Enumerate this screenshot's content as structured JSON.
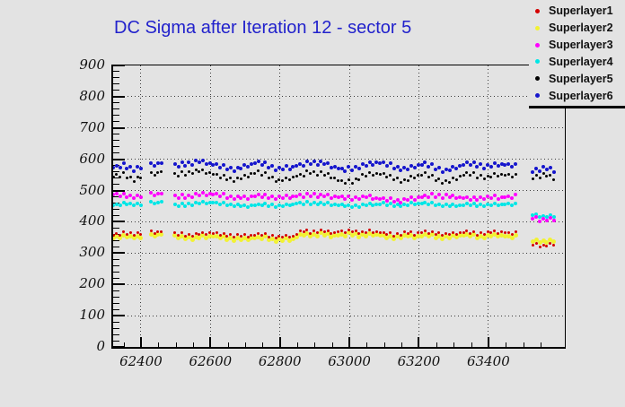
{
  "colors": {
    "background": "#e3e3e3",
    "title": "#2222cc",
    "frame": "#000000",
    "grid": "#3c3c3c"
  },
  "chart_data": {
    "type": "scatter",
    "title": "DC Sigma after Iteration 12 - sector 5",
    "xlabel": "",
    "ylabel": "",
    "x_range": [
      62320,
      63620
    ],
    "y_range": [
      0,
      900
    ],
    "grid": "dotted at major ticks, both axes",
    "legend_position": "top-right",
    "x_major_ticks": [
      {
        "value": 62400,
        "label": "62400"
      },
      {
        "value": 62600,
        "label": "62600"
      },
      {
        "value": 62800,
        "label": "62800"
      },
      {
        "value": 63000,
        "label": "63000"
      },
      {
        "value": 63200,
        "label": "63200"
      },
      {
        "value": 63400,
        "label": "63400"
      }
    ],
    "x_minor_step": 50,
    "y_major_ticks": [
      {
        "value": 0,
        "label": "0"
      },
      {
        "value": 100,
        "label": "100"
      },
      {
        "value": 200,
        "label": "200"
      },
      {
        "value": 300,
        "label": "300"
      },
      {
        "value": 400,
        "label": "400"
      },
      {
        "value": 500,
        "label": "500"
      },
      {
        "value": 600,
        "label": "600"
      },
      {
        "value": 700,
        "label": "700"
      },
      {
        "value": 800,
        "label": "800"
      },
      {
        "value": 900,
        "label": "900"
      }
    ],
    "y_minor_step": 20,
    "segments": [
      [
        62320,
        62408
      ],
      [
        62429,
        62467
      ],
      [
        62498,
        63486
      ],
      [
        63528,
        63595
      ]
    ],
    "marker_step": 10,
    "draw_order": [
      1,
      3,
      2,
      4,
      5,
      0
    ],
    "series": [
      {
        "name": "Superlayer1",
        "color": "#d40000",
        "size": 3,
        "jitter": 5,
        "anchors": [
          [
            62320,
            357
          ],
          [
            62360,
            364
          ],
          [
            62408,
            359
          ],
          [
            62429,
            366
          ],
          [
            62467,
            368
          ],
          [
            62500,
            361
          ],
          [
            62550,
            358
          ],
          [
            62600,
            363
          ],
          [
            62650,
            357
          ],
          [
            62700,
            354
          ],
          [
            62750,
            359
          ],
          [
            62800,
            351
          ],
          [
            62840,
            354
          ],
          [
            62862,
            371
          ],
          [
            62890,
            367
          ],
          [
            62920,
            372
          ],
          [
            62950,
            364
          ],
          [
            62980,
            368
          ],
          [
            63010,
            372
          ],
          [
            63040,
            365
          ],
          [
            63070,
            370
          ],
          [
            63100,
            362
          ],
          [
            63130,
            359
          ],
          [
            63160,
            365
          ],
          [
            63190,
            361
          ],
          [
            63220,
            367
          ],
          [
            63250,
            363
          ],
          [
            63280,
            359
          ],
          [
            63310,
            364
          ],
          [
            63340,
            367
          ],
          [
            63370,
            361
          ],
          [
            63400,
            365
          ],
          [
            63430,
            367
          ],
          [
            63460,
            361
          ],
          [
            63486,
            363
          ],
          [
            63528,
            330
          ],
          [
            63560,
            322
          ],
          [
            63595,
            331
          ]
        ]
      },
      {
        "name": "Superlayer2",
        "color": "#f2f233",
        "size": 5,
        "jitter": 5,
        "anchors": [
          [
            62320,
            347
          ],
          [
            62360,
            354
          ],
          [
            62408,
            349
          ],
          [
            62429,
            356
          ],
          [
            62467,
            358
          ],
          [
            62500,
            351
          ],
          [
            62550,
            348
          ],
          [
            62600,
            353
          ],
          [
            62650,
            347
          ],
          [
            62700,
            344
          ],
          [
            62750,
            349
          ],
          [
            62800,
            341
          ],
          [
            62840,
            344
          ],
          [
            62862,
            360
          ],
          [
            62890,
            357
          ],
          [
            62920,
            361
          ],
          [
            62950,
            354
          ],
          [
            62980,
            357
          ],
          [
            63010,
            361
          ],
          [
            63040,
            355
          ],
          [
            63070,
            359
          ],
          [
            63100,
            352
          ],
          [
            63130,
            349
          ],
          [
            63160,
            355
          ],
          [
            63190,
            351
          ],
          [
            63220,
            357
          ],
          [
            63250,
            353
          ],
          [
            63280,
            349
          ],
          [
            63310,
            354
          ],
          [
            63340,
            357
          ],
          [
            63370,
            351
          ],
          [
            63400,
            355
          ],
          [
            63430,
            357
          ],
          [
            63460,
            351
          ],
          [
            63486,
            353
          ],
          [
            63528,
            342
          ],
          [
            63560,
            335
          ],
          [
            63595,
            341
          ]
        ]
      },
      {
        "name": "Superlayer3",
        "color": "#ff00ff",
        "size": 4,
        "jitter": 6,
        "anchors": [
          [
            62320,
            487
          ],
          [
            62360,
            483
          ],
          [
            62408,
            479
          ],
          [
            62429,
            486
          ],
          [
            62467,
            490
          ],
          [
            62500,
            478
          ],
          [
            62550,
            484
          ],
          [
            62600,
            489
          ],
          [
            62650,
            481
          ],
          [
            62700,
            476
          ],
          [
            62750,
            483
          ],
          [
            62800,
            477
          ],
          [
            62850,
            481
          ],
          [
            62900,
            487
          ],
          [
            62950,
            480
          ],
          [
            63000,
            476
          ],
          [
            63050,
            479
          ],
          [
            63100,
            470
          ],
          [
            63150,
            467
          ],
          [
            63200,
            477
          ],
          [
            63250,
            485
          ],
          [
            63300,
            479
          ],
          [
            63350,
            473
          ],
          [
            63400,
            479
          ],
          [
            63450,
            477
          ],
          [
            63486,
            481
          ],
          [
            63528,
            415
          ],
          [
            63560,
            404
          ],
          [
            63595,
            409
          ]
        ]
      },
      {
        "name": "Superlayer4",
        "color": "#00e6e6",
        "size": 4,
        "jitter": 4,
        "anchors": [
          [
            62320,
            452
          ],
          [
            62360,
            458
          ],
          [
            62408,
            454
          ],
          [
            62429,
            460
          ],
          [
            62467,
            463
          ],
          [
            62500,
            452
          ],
          [
            62550,
            457
          ],
          [
            62600,
            461
          ],
          [
            62650,
            455
          ],
          [
            62700,
            449
          ],
          [
            62750,
            455
          ],
          [
            62800,
            451
          ],
          [
            62850,
            457
          ],
          [
            62900,
            461
          ],
          [
            62950,
            455
          ],
          [
            63000,
            450
          ],
          [
            63050,
            454
          ],
          [
            63100,
            457
          ],
          [
            63150,
            453
          ],
          [
            63200,
            459
          ],
          [
            63250,
            456
          ],
          [
            63300,
            451
          ],
          [
            63350,
            455
          ],
          [
            63400,
            452
          ],
          [
            63450,
            456
          ],
          [
            63486,
            455
          ],
          [
            63528,
            424
          ],
          [
            63560,
            416
          ],
          [
            63595,
            419
          ]
        ]
      },
      {
        "name": "Superlayer5",
        "color": "#000000",
        "size": 3,
        "jitter": 7,
        "anchors": [
          [
            62320,
            542
          ],
          [
            62350,
            551
          ],
          [
            62380,
            536
          ],
          [
            62408,
            545
          ],
          [
            62429,
            550
          ],
          [
            62467,
            560
          ],
          [
            62500,
            548
          ],
          [
            62530,
            556
          ],
          [
            62560,
            563
          ],
          [
            62590,
            557
          ],
          [
            62620,
            546
          ],
          [
            62650,
            539
          ],
          [
            62680,
            535
          ],
          [
            62710,
            549
          ],
          [
            62740,
            557
          ],
          [
            62770,
            545
          ],
          [
            62800,
            530
          ],
          [
            62830,
            538
          ],
          [
            62860,
            548
          ],
          [
            62890,
            560
          ],
          [
            62920,
            554
          ],
          [
            62950,
            543
          ],
          [
            62980,
            524
          ],
          [
            63010,
            530
          ],
          [
            63040,
            547
          ],
          [
            63070,
            554
          ],
          [
            63100,
            549
          ],
          [
            63130,
            539
          ],
          [
            63160,
            530
          ],
          [
            63190,
            544
          ],
          [
            63220,
            551
          ],
          [
            63250,
            538
          ],
          [
            63280,
            525
          ],
          [
            63310,
            540
          ],
          [
            63340,
            553
          ],
          [
            63370,
            547
          ],
          [
            63400,
            541
          ],
          [
            63430,
            551
          ],
          [
            63460,
            547
          ],
          [
            63486,
            545
          ],
          [
            63528,
            543
          ],
          [
            63560,
            551
          ],
          [
            63595,
            536
          ]
        ]
      },
      {
        "name": "Superlayer6",
        "color": "#1515cc",
        "size": 4,
        "jitter": 7,
        "anchors": [
          [
            62320,
            572
          ],
          [
            62350,
            580
          ],
          [
            62380,
            568
          ],
          [
            62408,
            575
          ],
          [
            62429,
            580
          ],
          [
            62467,
            588
          ],
          [
            62500,
            578
          ],
          [
            62530,
            586
          ],
          [
            62560,
            593
          ],
          [
            62590,
            588
          ],
          [
            62620,
            578
          ],
          [
            62650,
            572
          ],
          [
            62680,
            568
          ],
          [
            62710,
            580
          ],
          [
            62740,
            589
          ],
          [
            62770,
            580
          ],
          [
            62800,
            568
          ],
          [
            62830,
            573
          ],
          [
            62860,
            580
          ],
          [
            62890,
            592
          ],
          [
            62920,
            588
          ],
          [
            62950,
            578
          ],
          [
            62980,
            565
          ],
          [
            63010,
            570
          ],
          [
            63040,
            580
          ],
          [
            63070,
            588
          ],
          [
            63100,
            585
          ],
          [
            63130,
            576
          ],
          [
            63160,
            568
          ],
          [
            63190,
            577
          ],
          [
            63220,
            584
          ],
          [
            63250,
            573
          ],
          [
            63280,
            563
          ],
          [
            63310,
            574
          ],
          [
            63340,
            587
          ],
          [
            63370,
            582
          ],
          [
            63400,
            576
          ],
          [
            63430,
            584
          ],
          [
            63460,
            580
          ],
          [
            63486,
            578
          ],
          [
            63528,
            565
          ],
          [
            63560,
            573
          ],
          [
            63595,
            560
          ]
        ]
      }
    ]
  }
}
